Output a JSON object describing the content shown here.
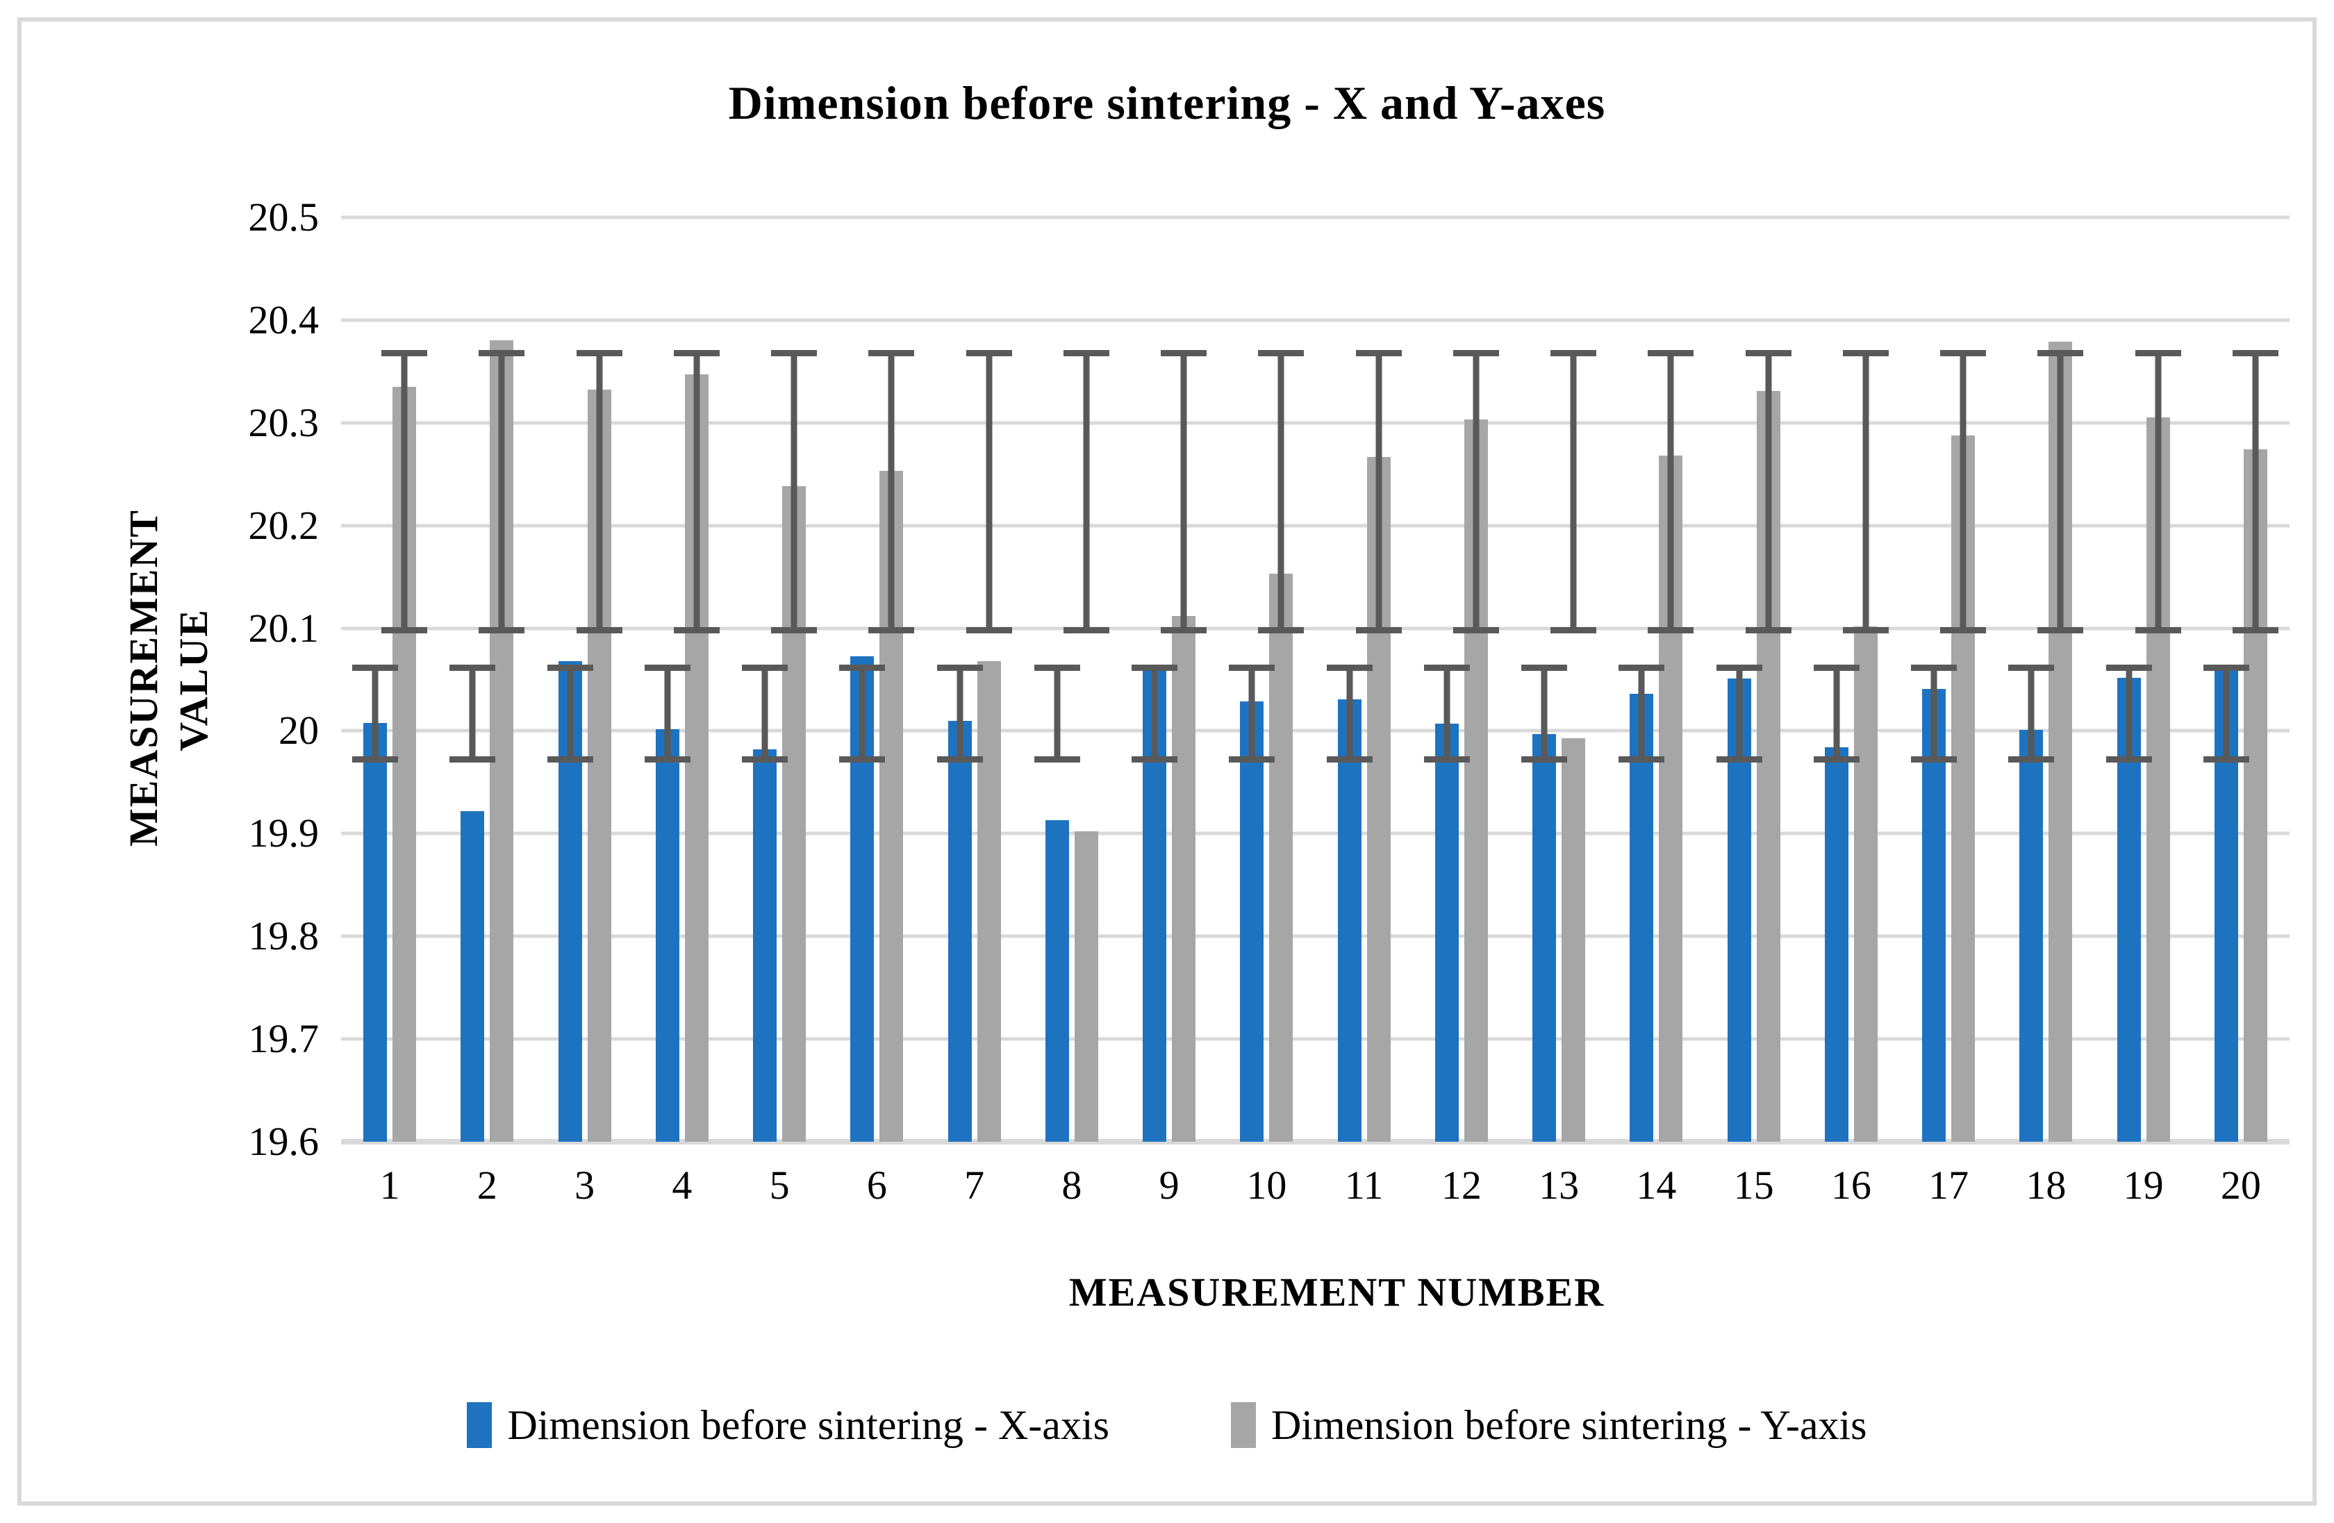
{
  "chart_data": {
    "type": "bar",
    "title": "Dimension before sintering - X and Y-axes",
    "xlabel": "MEASUREMENT NUMBER",
    "ylabel": "MEASUREMENT VALUE",
    "categories": [
      "1",
      "2",
      "3",
      "4",
      "5",
      "6",
      "7",
      "8",
      "9",
      "10",
      "11",
      "12",
      "13",
      "14",
      "15",
      "16",
      "17",
      "18",
      "19",
      "20"
    ],
    "series": [
      {
        "name": "Dimension before sintering - X-axis",
        "color": "#1E73C0",
        "values": [
          20.008,
          19.922,
          20.068,
          20.002,
          19.982,
          20.073,
          20.01,
          19.913,
          20.063,
          20.029,
          20.031,
          20.007,
          19.997,
          20.036,
          20.051,
          19.984,
          20.041,
          20.001,
          20.052,
          20.06
        ],
        "error_bar": {
          "low": 19.972,
          "high": 20.062
        }
      },
      {
        "name": "Dimension before sintering - Y-axis",
        "color": "#A6A6A6",
        "values": [
          20.335,
          20.38,
          20.332,
          20.347,
          20.238,
          20.253,
          20.068,
          19.902,
          20.112,
          20.153,
          20.267,
          20.303,
          19.993,
          20.268,
          20.331,
          20.102,
          20.288,
          20.379,
          20.305,
          20.274
        ],
        "error_bar": {
          "low": 20.098,
          "high": 20.368
        }
      }
    ],
    "ylim": [
      19.6,
      20.5
    ],
    "ytick_step": 0.1,
    "ytick_labels": [
      "20.5",
      "20.4",
      "20.3",
      "20.2",
      "20.1",
      "20",
      "19.9",
      "19.8",
      "19.7",
      "19.6"
    ],
    "grid": true,
    "legend_position": "bottom",
    "error_bar_color": "#595959",
    "gridline_color": "#D9D9D9"
  }
}
